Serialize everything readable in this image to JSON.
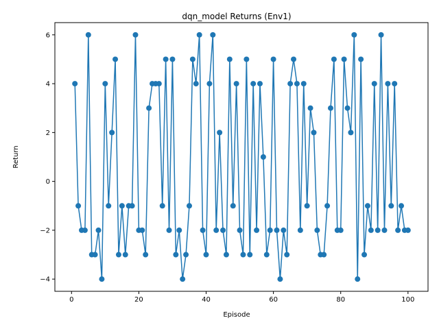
{
  "chart_data": {
    "type": "line",
    "title": "dqn_model Returns (Env1)",
    "xlabel": "Episode",
    "ylabel": "Return",
    "xlim": [
      -4.95,
      105.95
    ],
    "ylim": [
      -4.5,
      6.5
    ],
    "xticks": [
      0,
      20,
      40,
      60,
      80,
      100
    ],
    "yticks": [
      -4,
      -2,
      0,
      2,
      4,
      6
    ],
    "xtick_labels": [
      "0",
      "20",
      "40",
      "60",
      "80",
      "100"
    ],
    "ytick_labels": [
      "−4",
      "−2",
      "0",
      "2",
      "4",
      "6"
    ],
    "grid": false,
    "markers": true,
    "color": "#1f77b4",
    "series": [
      {
        "x": [
          1,
          2,
          3,
          4,
          5,
          6,
          7,
          8,
          9,
          10,
          11,
          12,
          13,
          14,
          15,
          16,
          17,
          18,
          19,
          20,
          21,
          22,
          23,
          24,
          25,
          26,
          27,
          28,
          29,
          30,
          31,
          32,
          33,
          34,
          35,
          36,
          37,
          38,
          39,
          40,
          41,
          42,
          43,
          44,
          45,
          46,
          47,
          48,
          49,
          50,
          51,
          52,
          53,
          54,
          55,
          56,
          57,
          58,
          59,
          60,
          61,
          62,
          63,
          64,
          65,
          66,
          67,
          68,
          69,
          70,
          71,
          72,
          73,
          74,
          75,
          76,
          77,
          78,
          79,
          80,
          81,
          82,
          83,
          84,
          85,
          86,
          87,
          88,
          89,
          90,
          91,
          92,
          93,
          94,
          95,
          96,
          97,
          98,
          99,
          100
        ],
        "values": [
          4,
          -1,
          -2,
          -2,
          6,
          -3,
          -3,
          -2,
          -4,
          4,
          -1,
          2,
          5,
          -3,
          -1,
          -3,
          -1,
          -1,
          6,
          -2,
          -2,
          -3,
          3,
          4,
          4,
          4,
          -1,
          5,
          -2,
          5,
          -3,
          -2,
          -4,
          -3,
          -1,
          5,
          4,
          6,
          -2,
          -3,
          4,
          6,
          -2,
          2,
          -2,
          -3,
          5,
          -1,
          4,
          -2,
          -3,
          5,
          -3,
          4,
          -2,
          4,
          1,
          -3,
          -2,
          5,
          -2,
          -4,
          -2,
          -3,
          4,
          5,
          4,
          -2,
          4,
          -1,
          3,
          2,
          -2,
          -3,
          -3,
          -1,
          3,
          5,
          -2,
          -2,
          5,
          3,
          2,
          6,
          -4,
          5,
          -3,
          -1,
          -2,
          4,
          -2,
          6,
          -2,
          4,
          -1,
          4,
          -2,
          -1,
          -2,
          -2
        ]
      }
    ]
  }
}
